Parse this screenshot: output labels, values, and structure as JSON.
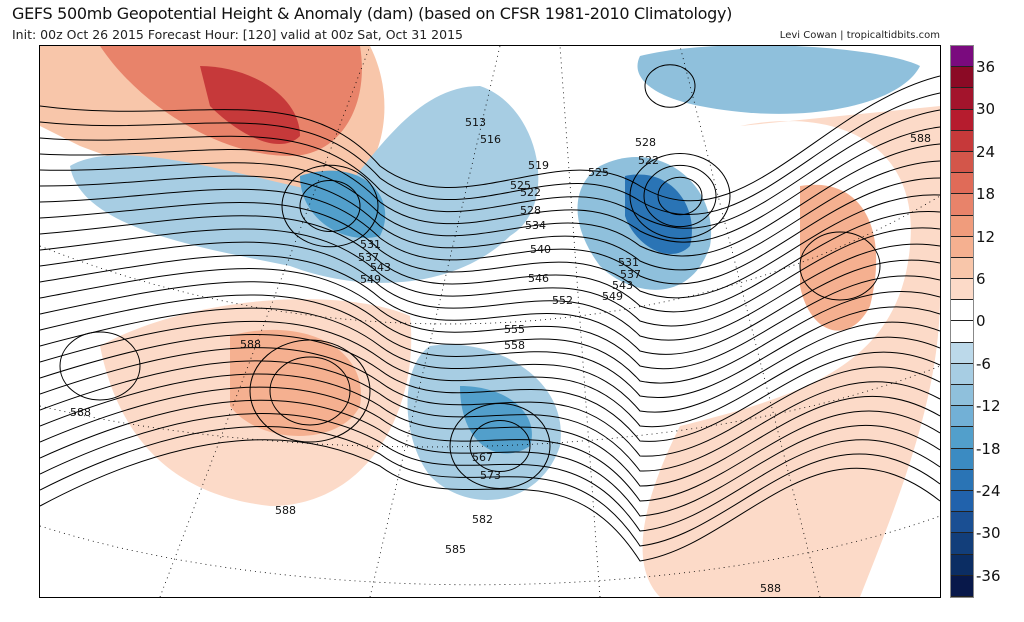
{
  "header": {
    "title": "GEFS 500mb Geopotential Height & Anomaly (dam) (based on CFSR 1981-2010 Climatology)",
    "subtitle": "Init: 00z Oct 26 2015   Forecast Hour: [120]   valid at 00z Sat, Oct 31 2015",
    "credit": "Levi Cowan | tropicaltidbits.com"
  },
  "colorbar": {
    "labels": [
      "36",
      "30",
      "24",
      "18",
      "12",
      "6",
      "0",
      "-6",
      "-12",
      "-18",
      "-24",
      "-30",
      "-36"
    ],
    "colors": [
      "#7a0a7e",
      "#8b0a25",
      "#a3142c",
      "#b61c2e",
      "#c6393a",
      "#d3564a",
      "#e06b58",
      "#e8836a",
      "#f09c7c",
      "#f5b090",
      "#f8c6aa",
      "#fcdac8",
      "#ffffff",
      "#ffffff",
      "#bcd9ea",
      "#a7cde3",
      "#8fc0dc",
      "#72b0d6",
      "#529fcb",
      "#3b8bc2",
      "#2a74b5",
      "#2162ac",
      "#1a4f93",
      "#123e7a",
      "#0b2d63",
      "#08184a"
    ]
  },
  "contour_labels": [
    "513",
    "516",
    "519",
    "522",
    "525",
    "528",
    "531",
    "534",
    "537",
    "540",
    "543",
    "546",
    "549",
    "552",
    "555",
    "558",
    "567",
    "573",
    "582",
    "585",
    "588",
    "588",
    "588",
    "588",
    "588",
    "525",
    "528",
    "522",
    "531",
    "537",
    "543",
    "549"
  ]
}
